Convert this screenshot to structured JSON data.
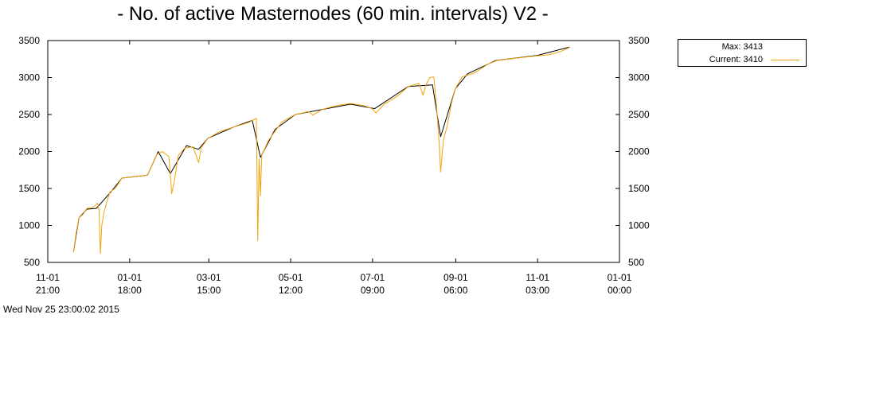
{
  "chart_data": {
    "type": "line",
    "title": "- No. of active Masternodes (60 min. intervals) V2 -",
    "xlabel": "",
    "ylabel": "",
    "ylim": [
      500,
      3500
    ],
    "y_ticks": [
      "500",
      "1000",
      "1500",
      "2000",
      "2500",
      "3000",
      "3500"
    ],
    "x_range": [
      "2014-11-01 21:00",
      "2016-01-01 00:00"
    ],
    "x_ticks": [
      {
        "date": "2014-11-01 21:00",
        "line1": "11-01",
        "line2": "21:00"
      },
      {
        "date": "2015-01-01 18:00",
        "line1": "01-01",
        "line2": "18:00"
      },
      {
        "date": "2015-03-01 15:00",
        "line1": "03-01",
        "line2": "15:00"
      },
      {
        "date": "2015-05-01 12:00",
        "line1": "05-01",
        "line2": "12:00"
      },
      {
        "date": "2015-07-01 09:00",
        "line1": "07-01",
        "line2": "09:00"
      },
      {
        "date": "2015-09-01 06:00",
        "line1": "09-01",
        "line2": "06:00"
      },
      {
        "date": "2015-11-01 03:00",
        "line1": "11-01",
        "line2": "03:00"
      },
      {
        "date": "2016-01-01 00:00",
        "line1": "01-01",
        "line2": "00:00"
      }
    ],
    "grid": false,
    "legend_position": "top-right, outside plot",
    "series": [
      {
        "name": "Current",
        "color": "#f0a30a",
        "points": [
          [
            "2014-11-21 00:00",
            640
          ],
          [
            "2014-11-23 00:00",
            900
          ],
          [
            "2014-11-25 00:00",
            1100
          ],
          [
            "2014-11-28 00:00",
            1150
          ],
          [
            "2014-12-01 00:00",
            1230
          ],
          [
            "2014-12-05 00:00",
            1240
          ],
          [
            "2014-12-09 00:00",
            1300
          ],
          [
            "2014-12-10 00:00",
            1200
          ],
          [
            "2014-12-11 00:00",
            620
          ],
          [
            "2014-12-12 00:00",
            1000
          ],
          [
            "2014-12-14 00:00",
            1200
          ],
          [
            "2014-12-18 00:00",
            1450
          ],
          [
            "2014-12-22 00:00",
            1500
          ],
          [
            "2014-12-27 00:00",
            1640
          ],
          [
            "2015-01-05 00:00",
            1660
          ],
          [
            "2015-01-15 00:00",
            1680
          ],
          [
            "2015-01-22 00:00",
            1960
          ],
          [
            "2015-01-26 00:00",
            2000
          ],
          [
            "2015-01-31 00:00",
            1930
          ],
          [
            "2015-02-02 00:00",
            1430
          ],
          [
            "2015-02-04 00:00",
            1600
          ],
          [
            "2015-02-07 00:00",
            1950
          ],
          [
            "2015-02-12 00:00",
            2050
          ],
          [
            "2015-02-18 00:00",
            2060
          ],
          [
            "2015-02-22 00:00",
            1850
          ],
          [
            "2015-02-24 00:00",
            2050
          ],
          [
            "2015-03-01 00:00",
            2180
          ],
          [
            "2015-03-10 00:00",
            2270
          ],
          [
            "2015-03-20 00:00",
            2330
          ],
          [
            "2015-03-31 00:00",
            2390
          ],
          [
            "2015-04-06 00:00",
            2450
          ],
          [
            "2015-04-07 00:00",
            790
          ],
          [
            "2015-04-08 00:00",
            1900
          ],
          [
            "2015-04-09 00:00",
            1400
          ],
          [
            "2015-04-10 00:00",
            1950
          ],
          [
            "2015-04-15 00:00",
            2150
          ],
          [
            "2015-04-25 00:00",
            2400
          ],
          [
            "2015-05-05 00:00",
            2500
          ],
          [
            "2015-05-15 00:00",
            2540
          ],
          [
            "2015-05-18 00:00",
            2490
          ],
          [
            "2015-05-25 00:00",
            2570
          ],
          [
            "2015-06-05 00:00",
            2620
          ],
          [
            "2015-06-15 00:00",
            2650
          ],
          [
            "2015-06-25 00:00",
            2620
          ],
          [
            "2015-07-01 00:00",
            2580
          ],
          [
            "2015-07-04 00:00",
            2520
          ],
          [
            "2015-07-10 00:00",
            2640
          ],
          [
            "2015-07-20 00:00",
            2750
          ],
          [
            "2015-07-28 00:00",
            2880
          ],
          [
            "2015-08-05 00:00",
            2920
          ],
          [
            "2015-08-08 00:00",
            2760
          ],
          [
            "2015-08-10 00:00",
            2900
          ],
          [
            "2015-08-13 00:00",
            3000
          ],
          [
            "2015-08-16 00:00",
            3010
          ],
          [
            "2015-08-18 00:00",
            2600
          ],
          [
            "2015-08-20 00:00",
            2100
          ],
          [
            "2015-08-21 00:00",
            1720
          ],
          [
            "2015-08-23 00:00",
            2150
          ],
          [
            "2015-08-26 00:00",
            2350
          ],
          [
            "2015-08-29 00:00",
            2650
          ],
          [
            "2015-09-01 00:00",
            2850
          ],
          [
            "2015-09-06 00:00",
            3010
          ],
          [
            "2015-09-15 00:00",
            3060
          ],
          [
            "2015-09-25 00:00",
            3180
          ],
          [
            "2015-10-02 00:00",
            3230
          ],
          [
            "2015-10-10 00:00",
            3250
          ],
          [
            "2015-10-20 00:00",
            3270
          ],
          [
            "2015-10-30 00:00",
            3290
          ],
          [
            "2015-11-10 00:00",
            3310
          ],
          [
            "2015-11-18 00:00",
            3350
          ],
          [
            "2015-11-25 00:00",
            3410
          ]
        ]
      },
      {
        "name": "Max",
        "color": "#000000",
        "points": [
          [
            "2014-11-21 00:00",
            640
          ],
          [
            "2014-11-25 00:00",
            1100
          ],
          [
            "2014-12-01 00:00",
            1220
          ],
          [
            "2014-12-08 00:00",
            1230
          ],
          [
            "2014-12-20 00:00",
            1480
          ],
          [
            "2014-12-27 00:00",
            1640
          ],
          [
            "2015-01-15 00:00",
            1680
          ],
          [
            "2015-01-23 00:00",
            2000
          ],
          [
            "2015-02-01 00:00",
            1700
          ],
          [
            "2015-02-13 00:00",
            2080
          ],
          [
            "2015-02-22 00:00",
            2030
          ],
          [
            "2015-03-01 00:00",
            2180
          ],
          [
            "2015-03-20 00:00",
            2330
          ],
          [
            "2015-04-03 00:00",
            2420
          ],
          [
            "2015-04-09 00:00",
            1920
          ],
          [
            "2015-04-20 00:00",
            2300
          ],
          [
            "2015-05-05 00:00",
            2500
          ],
          [
            "2015-06-15 00:00",
            2640
          ],
          [
            "2015-07-03 00:00",
            2580
          ],
          [
            "2015-07-28 00:00",
            2880
          ],
          [
            "2015-08-15 00:00",
            2900
          ],
          [
            "2015-08-21 00:00",
            2200
          ],
          [
            "2015-09-01 00:00",
            2850
          ],
          [
            "2015-09-10 00:00",
            3050
          ],
          [
            "2015-10-01 00:00",
            3230
          ],
          [
            "2015-11-01 00:00",
            3300
          ],
          [
            "2015-11-25 00:00",
            3413
          ]
        ]
      }
    ]
  },
  "legend": {
    "max_text": "Max: 3413",
    "current_text": "Current: 3410"
  },
  "timestamp": "Wed Nov 25 23:00:02 2015"
}
